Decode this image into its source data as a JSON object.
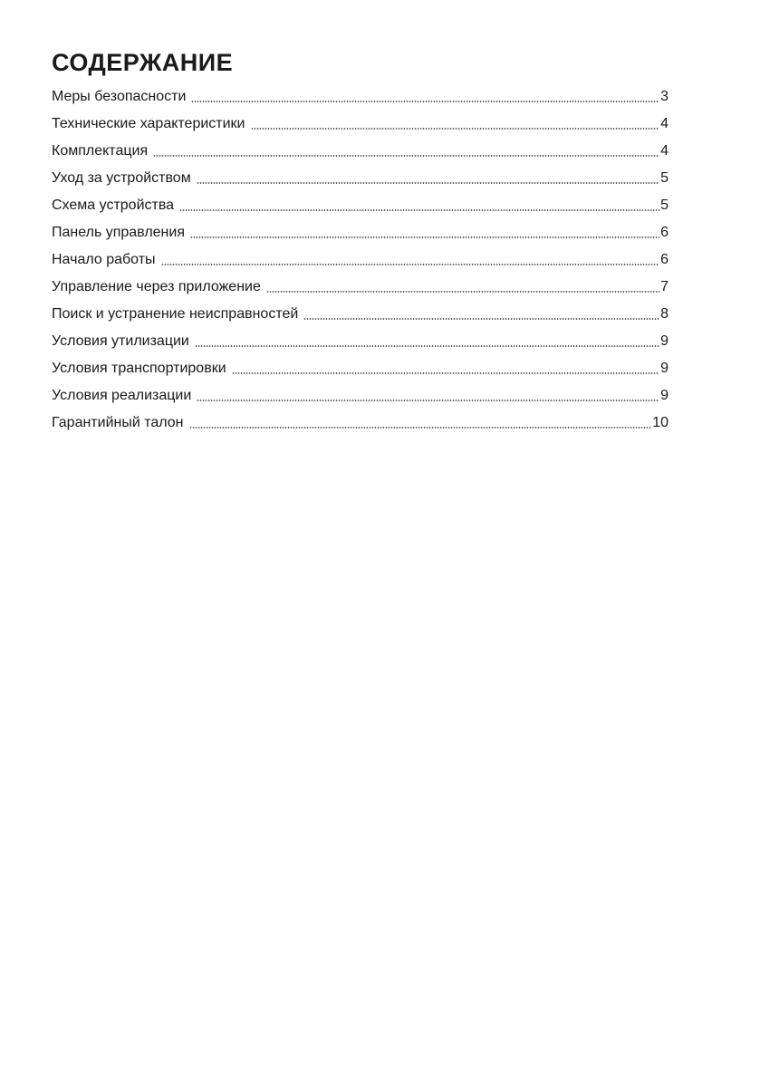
{
  "title": "СОДЕРЖАНИЕ",
  "entries": [
    {
      "label": "Меры безопасности",
      "page": "3"
    },
    {
      "label": "Технические характеристики",
      "page": "4"
    },
    {
      "label": "Комплектация",
      "page": "4"
    },
    {
      "label": "Уход за устройством",
      "page": "5"
    },
    {
      "label": "Схема устройства",
      "page": "5"
    },
    {
      "label": "Панель управления",
      "page": "6"
    },
    {
      "label": "Начало работы",
      "page": "6"
    },
    {
      "label": "Управление через приложение",
      "page": "7"
    },
    {
      "label": "Поиск и устранение неисправностей",
      "page": "8"
    },
    {
      "label": "Условия утилизации",
      "page": "9"
    },
    {
      "label": "Условия транспортировки",
      "page": "9"
    },
    {
      "label": "Условия реализации",
      "page": "9"
    },
    {
      "label": "Гарантийный  талон",
      "page": "10"
    }
  ]
}
